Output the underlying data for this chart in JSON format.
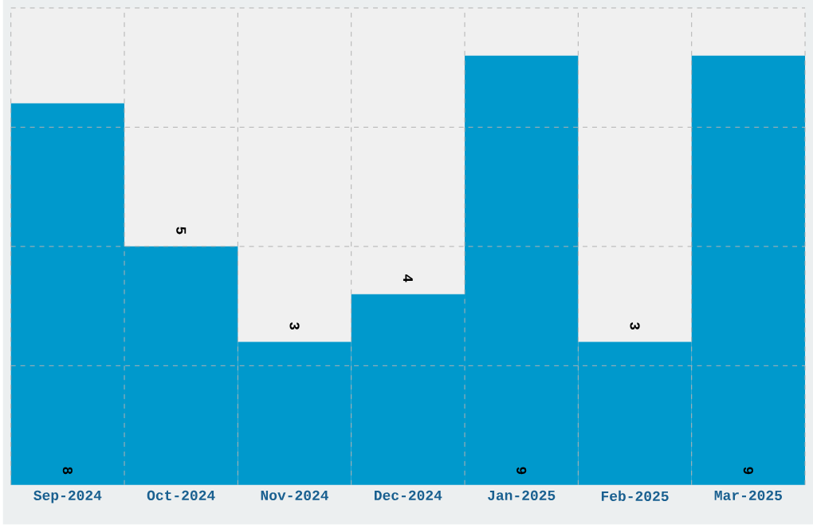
{
  "chart_data": {
    "type": "bar",
    "categories": [
      "Sep-2024",
      "Oct-2024",
      "Nov-2024",
      "Dec-2024",
      "Jan-2025",
      "Feb-2025",
      "Mar-2025"
    ],
    "values": [
      8,
      5,
      3,
      4,
      9,
      3,
      9
    ],
    "color": "#0099cc",
    "ylim": [
      0,
      10
    ],
    "yticks": [
      {
        "value": 2.5,
        "label": null
      },
      {
        "value": 5,
        "label": null
      },
      {
        "value": 7.5,
        "label": null
      },
      {
        "value": 10,
        "label": null
      }
    ],
    "tick_labels": "x",
    "grid": true,
    "data_labels": true
  }
}
